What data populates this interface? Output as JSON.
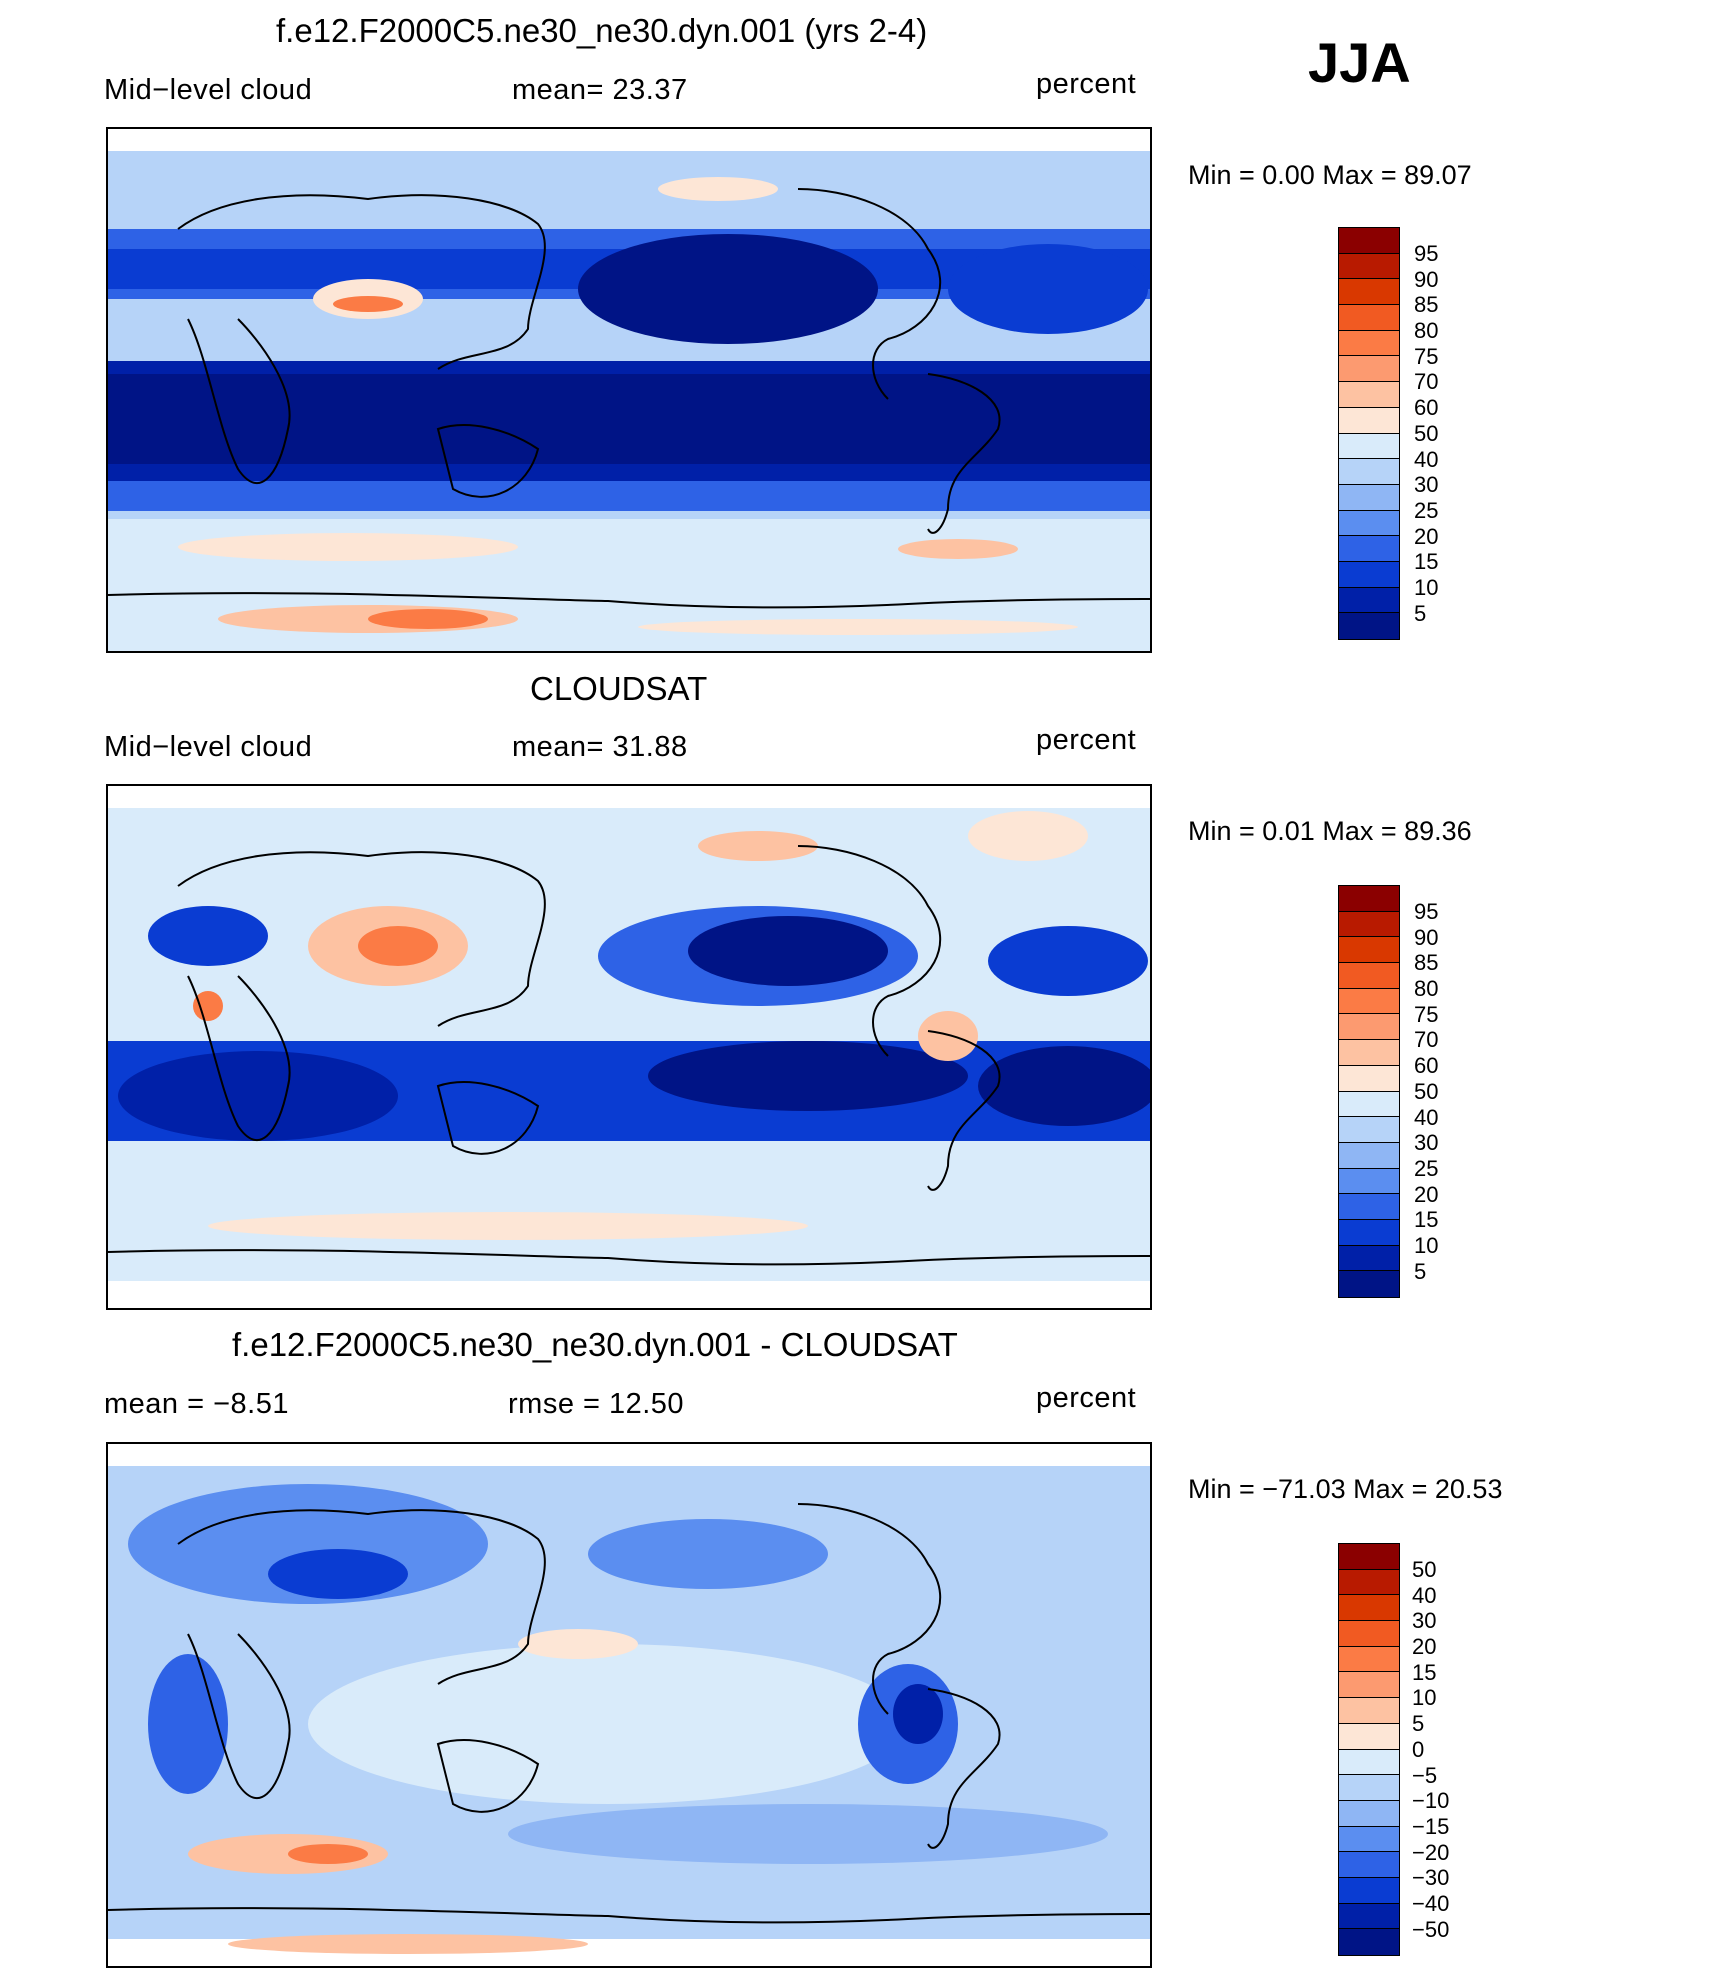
{
  "season": "JJA",
  "panels": [
    {
      "title": "f.e12.F2000C5.ne30_ne30.dyn.001 (yrs 2-4)",
      "left_label": "Mid−level cloud",
      "mid_label": "mean=   23.37",
      "units": "percent",
      "minmax": "Min =     0.00  Max =    89.07",
      "colorbar_labels": [
        "95",
        "90",
        "85",
        "80",
        "75",
        "70",
        "60",
        "50",
        "40",
        "30",
        "25",
        "20",
        "15",
        "10",
        "5"
      ],
      "colorbar_colors": [
        "#8b0000",
        "#b81a00",
        "#d93800",
        "#f15a22",
        "#fb7b45",
        "#fc9a70",
        "#fdc2a2",
        "#fde6d6",
        "#d9ebfa",
        "#b6d3f8",
        "#8fb6f4",
        "#5b8ef0",
        "#2e62e6",
        "#0a3cd2",
        "#0020a8",
        "#001486"
      ]
    },
    {
      "title": "CLOUDSAT",
      "left_label": "Mid−level cloud",
      "mid_label": "mean=   31.88",
      "units": "percent",
      "minmax": "Min =     0.01  Max =    89.36",
      "colorbar_labels": [
        "95",
        "90",
        "85",
        "80",
        "75",
        "70",
        "60",
        "50",
        "40",
        "30",
        "25",
        "20",
        "15",
        "10",
        "5"
      ],
      "colorbar_colors": [
        "#8b0000",
        "#b81a00",
        "#d93800",
        "#f15a22",
        "#fb7b45",
        "#fc9a70",
        "#fdc2a2",
        "#fde6d6",
        "#d9ebfa",
        "#b6d3f8",
        "#8fb6f4",
        "#5b8ef0",
        "#2e62e6",
        "#0a3cd2",
        "#0020a8",
        "#001486"
      ]
    },
    {
      "title": "f.e12.F2000C5.ne30_ne30.dyn.001 - CLOUDSAT",
      "left_label": "mean  =   −8.51",
      "mid_label": "rmse  =    12.50",
      "units": "percent",
      "minmax": "Min  = −71.03  Max  =    20.53",
      "colorbar_labels": [
        "50",
        "40",
        "30",
        "20",
        "15",
        "10",
        "5",
        "0",
        "−5",
        "−10",
        "−15",
        "−20",
        "−30",
        "−40",
        "−50"
      ],
      "colorbar_colors": [
        "#8b0000",
        "#b81a00",
        "#d93800",
        "#f15a22",
        "#fb7b45",
        "#fc9a70",
        "#fdc2a2",
        "#fde6d6",
        "#d9ebfa",
        "#b6d3f8",
        "#8fb6f4",
        "#5b8ef0",
        "#2e62e6",
        "#0a3cd2",
        "#0020a8",
        "#001486"
      ]
    }
  ]
}
